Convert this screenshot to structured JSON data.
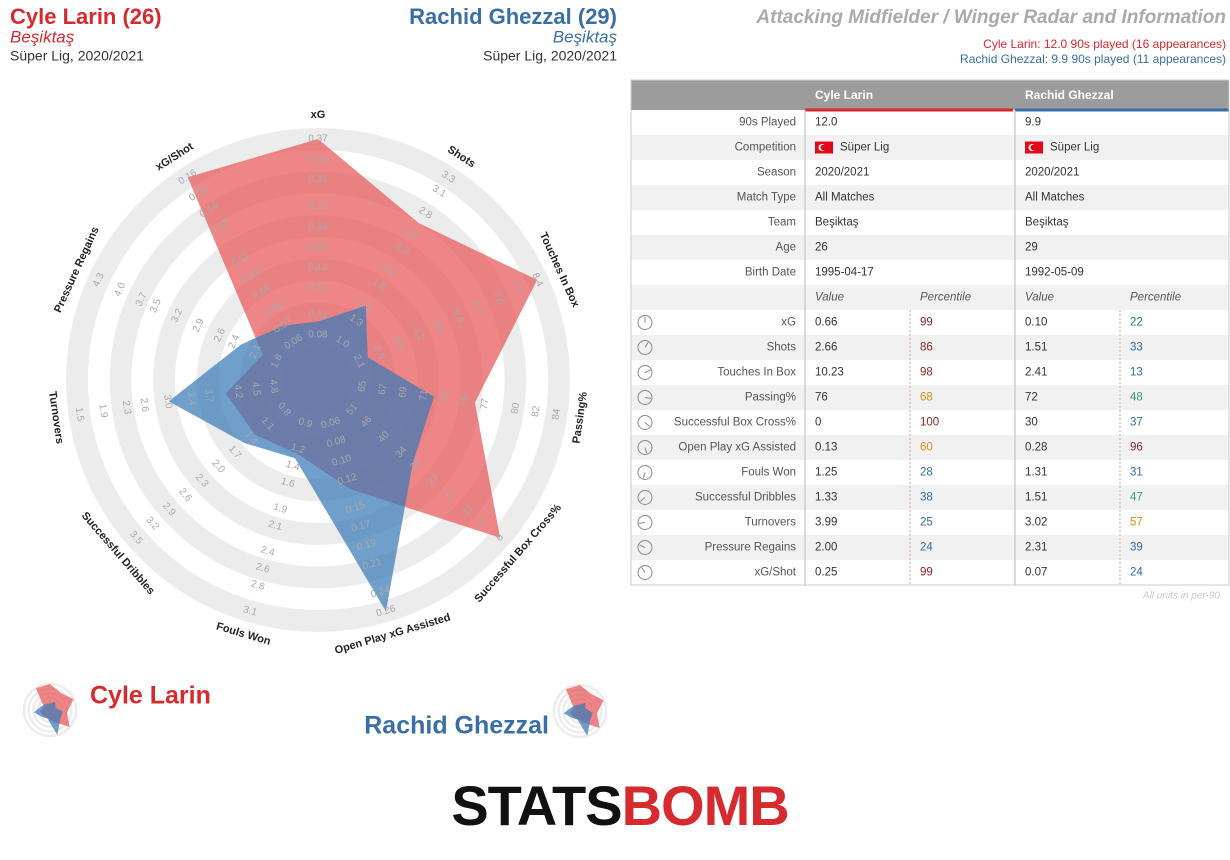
{
  "header": {
    "left": {
      "name": "Cyle Larin (26)",
      "team": "Beşiktaş",
      "competition": "Süper Lig, 2020/2021"
    },
    "right": {
      "name": "Rachid Ghezzal (29)",
      "team": "Beşiktaş",
      "competition": "Süper Lig, 2020/2021"
    },
    "title": "Attacking Midfielder / Winger Radar and Information",
    "notes": [
      "Cyle Larin: 12.0 90s played (16 appearances)",
      "Rachid Ghezzal: 9.9 90s played (11 appearances)"
    ]
  },
  "chart_data": {
    "type": "radar",
    "axes": [
      {
        "name": "xG",
        "lim": [
          0.08,
          0.37
        ],
        "ticks": [
          0.08,
          0.11,
          0.15,
          0.18,
          0.21,
          0.24,
          0.27,
          0.31,
          0.34,
          0.37
        ]
      },
      {
        "name": "Shots",
        "lim": [
          1.0,
          3.3
        ],
        "ticks": [
          {
            "value": 1.0,
            "label": "1.0"
          },
          1.3,
          1.5,
          1.8,
          {
            "value": 2.0,
            "label": "2.0"
          },
          2.3,
          2.5,
          2.8,
          3.1,
          3.3
        ]
      },
      {
        "name": "Touches In Box",
        "lim": [
          2.1,
          8.4
        ],
        "ticks": [
          2.1,
          2.8,
          3.5,
          4.2,
          4.9,
          5.6,
          6.3,
          {
            "value": 7.0,
            "label": "7.0"
          },
          7.7,
          8.4
        ]
      },
      {
        "name": "Passing%",
        "lim": [
          65,
          84
        ],
        "ticks": [
          65,
          67,
          69,
          71,
          73,
          75,
          77,
          80,
          82,
          84
        ]
      },
      {
        "name": "Successful Box Cross%",
        "lim": [
          51,
          0
        ],
        "ticks": [
          51,
          46,
          40,
          34,
          29,
          23,
          17,
          11,
          6,
          0
        ]
      },
      {
        "name": "Open Play xG Assisted",
        "lim": [
          0.06,
          0.26
        ],
        "ticks": [
          0.06,
          0.08,
          {
            "value": 0.1,
            "label": "0.10"
          },
          0.12,
          0.15,
          0.17,
          0.19,
          0.21,
          0.24,
          0.26
        ]
      },
      {
        "name": "Fouls Won",
        "lim": [
          0.9,
          3.1
        ],
        "ticks": [
          0.9,
          1.2,
          1.4,
          1.6,
          1.9,
          2.1,
          2.4,
          2.6,
          2.8,
          3.1
        ]
      },
      {
        "name": "Successful Dribbles",
        "lim": [
          0.8,
          3.5
        ],
        "ticks": [
          0.8,
          1.1,
          1.4,
          1.7,
          {
            "value": 2.0,
            "label": "2.0"
          },
          2.3,
          2.6,
          2.9,
          3.2,
          3.5
        ]
      },
      {
        "name": "Turnovers",
        "lim": [
          4.8,
          1.5
        ],
        "ticks": [
          4.8,
          4.5,
          4.2,
          3.7,
          3.4,
          {
            "value": 3.0,
            "label": "3.0"
          },
          2.6,
          2.3,
          1.9,
          1.5
        ]
      },
      {
        "name": "Pressure Regains",
        "lim": [
          1.8,
          4.3
        ],
        "ticks": [
          1.8,
          2.1,
          2.4,
          2.6,
          2.9,
          3.2,
          3.5,
          3.7,
          {
            "value": 4.0,
            "label": "4.0"
          },
          4.3
        ]
      },
      {
        "name": "xG/Shot",
        "lim": [
          0.06,
          0.16
        ],
        "ticks": [
          0.06,
          0.07,
          0.08,
          0.09,
          {
            "value": 0.1,
            "label": "0.10"
          },
          0.11,
          0.13,
          0.14,
          0.15,
          0.16
        ]
      }
    ],
    "series": [
      {
        "name": "Cyle Larin",
        "color": "#e8585a",
        "values": [
          0.66,
          2.66,
          10.23,
          76,
          0,
          0.13,
          1.25,
          1.33,
          3.99,
          2.0,
          0.25
        ],
        "value_labels": [
          "0.66",
          "2.66",
          "10.23",
          "76",
          "0",
          "0.13",
          "1.25",
          "1.33",
          "3.99",
          "2.00",
          "0.25"
        ]
      },
      {
        "name": "Rachid Ghezzal",
        "color": "#3a7ab8",
        "values": [
          0.1,
          1.51,
          2.41,
          72,
          30,
          0.28,
          1.31,
          1.51,
          3.02,
          2.31,
          0.07
        ],
        "value_labels": [
          "0.10",
          "1.51",
          "2.41",
          "72",
          "30",
          "0.28",
          "1.31",
          "1.51",
          "3.02",
          "2.31",
          "0.07"
        ]
      }
    ]
  },
  "table": {
    "info_rows": [
      {
        "label": "90s Played",
        "values": [
          "12.0",
          "9.9"
        ]
      },
      {
        "label": "Competition",
        "values": [
          "Süper Lig",
          "Süper Lig"
        ]
      },
      {
        "label": "Season",
        "values": [
          "2020/2021",
          "2020/2021"
        ]
      },
      {
        "label": "Match Type",
        "values": [
          "All Matches",
          "All Matches"
        ]
      },
      {
        "label": "Team",
        "values": [
          "Beşiktaş",
          "Beşiktaş"
        ]
      },
      {
        "label": "Age",
        "values": [
          26,
          29
        ]
      },
      {
        "label": "Birth Date",
        "values": [
          "1995-04-17",
          "1992-05-09"
        ]
      }
    ],
    "subheader": [
      "Value",
      "Percentile"
    ],
    "percentiles": [
      [
        99,
        86,
        98,
        68,
        100,
        60,
        28,
        38,
        25,
        24,
        99
      ],
      [
        22,
        33,
        13,
        48,
        37,
        96,
        31,
        47,
        57,
        39,
        24
      ]
    ],
    "footnote": "All units in per-90"
  },
  "logo": [
    "STATS",
    "BOMB"
  ]
}
